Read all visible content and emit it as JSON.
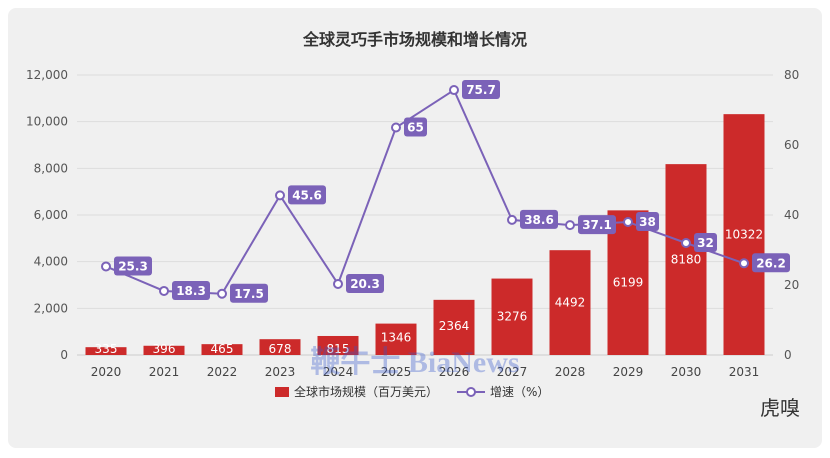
{
  "chart_data": {
    "type": "bar",
    "title": "全球灵巧手市场规模和增长情况",
    "categories": [
      "2020",
      "2021",
      "2022",
      "2023",
      "2024",
      "2025",
      "2026",
      "2027",
      "2028",
      "2029",
      "2030",
      "2031"
    ],
    "series": [
      {
        "name": "全球市场规模（百万美元）",
        "type": "bar",
        "axis": "left",
        "values": [
          335,
          396,
          465,
          678,
          815,
          1346,
          2364,
          3276,
          4492,
          6199,
          8180,
          10322
        ]
      },
      {
        "name": "增速（%）",
        "type": "line",
        "axis": "right",
        "values": [
          25.3,
          18.3,
          17.5,
          45.6,
          20.3,
          65,
          75.7,
          38.6,
          37.1,
          38,
          32,
          26.2
        ]
      }
    ],
    "yleft": {
      "min": 0,
      "max": 12000,
      "ticks": [
        "0",
        "2,000",
        "4,000",
        "6,000",
        "8,000",
        "10,000",
        "12,000"
      ]
    },
    "yright": {
      "min": 0,
      "max": 80,
      "ticks": [
        "0",
        "20",
        "40",
        "60",
        "80"
      ]
    },
    "legend": "bottom",
    "grid": true,
    "colors": {
      "bar": "#cc2a2a",
      "line": "#7b62b8",
      "label_bg": "#7b62b8"
    }
  },
  "watermark": "鞭牛士 BiaNews",
  "logo": "虎嗅"
}
